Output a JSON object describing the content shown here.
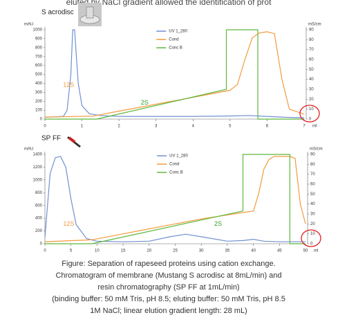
{
  "header": "eluted by NaCl gradient allowed the identification of prot",
  "chart_data": [
    {
      "type": "line",
      "title": "S acrodisc",
      "ylabel": "mAU",
      "y2label": "mS/cm",
      "xlabel": "ml",
      "xlim": [
        0,
        7
      ],
      "xticks": [
        0,
        1,
        2,
        3,
        4,
        5,
        6,
        7
      ],
      "ylim": [
        0,
        1000
      ],
      "yticks": [
        0,
        100,
        200,
        300,
        400,
        500,
        600,
        700,
        800,
        900,
        1000
      ],
      "y2lim": [
        0,
        90
      ],
      "y2ticks": [
        0,
        10,
        20,
        30,
        40,
        50,
        60,
        70,
        80,
        90
      ],
      "series": [
        {
          "name": "UV 1_280",
          "color": "#6f8fd0",
          "axis": "y",
          "x": [
            0,
            0.5,
            0.6,
            0.7,
            0.75,
            0.8,
            0.85,
            0.9,
            1.0,
            1.2,
            1.5,
            2,
            3,
            4,
            5,
            5.5,
            6,
            6.5,
            7
          ],
          "values": [
            20,
            30,
            100,
            500,
            1000,
            1000,
            700,
            400,
            150,
            60,
            40,
            30,
            30,
            30,
            35,
            40,
            30,
            20,
            15
          ]
        },
        {
          "name": "Cond",
          "color": "#f39a3c",
          "axis": "y2",
          "x": [
            0,
            1.3,
            2,
            3,
            4,
            5,
            5.2,
            5.4,
            5.6,
            5.8,
            6.0,
            6.2,
            6.4,
            6.6,
            7
          ],
          "values": [
            2,
            3,
            8,
            15,
            22,
            29,
            35,
            60,
            82,
            87,
            88,
            86,
            40,
            10,
            5
          ]
        },
        {
          "name": "Conc B",
          "color": "#5cb83a",
          "axis": "y2",
          "x": [
            0,
            1.4,
            4.9,
            4.9,
            5.75,
            5.75,
            7
          ],
          "values": [
            0,
            0,
            30,
            90,
            90,
            0,
            0
          ]
        }
      ],
      "annotations": [
        {
          "text": "12S",
          "color": "#f39a3c"
        },
        {
          "text": "2S",
          "color": "#2aa02a"
        }
      ]
    },
    {
      "type": "line",
      "title": "SP FF",
      "ylabel": "mAU",
      "y2label": "mS/cm",
      "xlabel": "ml",
      "xlim": [
        0,
        50
      ],
      "xticks": [
        0,
        5,
        10,
        15,
        20,
        25,
        30,
        35,
        40,
        45,
        50
      ],
      "ylim": [
        0,
        1400
      ],
      "yticks": [
        0,
        200,
        400,
        600,
        800,
        1000,
        1200,
        1400
      ],
      "y2lim": [
        0,
        90
      ],
      "y2ticks": [
        0,
        10,
        20,
        30,
        40,
        50,
        60,
        70,
        80,
        90
      ],
      "series": [
        {
          "name": "UV 1_280",
          "color": "#6f8fd0",
          "axis": "y",
          "x": [
            0,
            1,
            2,
            3,
            4,
            5,
            6,
            8,
            10,
            15,
            20,
            24,
            27,
            30,
            35,
            38,
            40,
            42,
            45,
            50
          ],
          "values": [
            100,
            1100,
            1350,
            1370,
            1200,
            700,
            300,
            80,
            40,
            30,
            40,
            110,
            150,
            110,
            40,
            50,
            70,
            40,
            30,
            30
          ]
        },
        {
          "name": "Cond",
          "color": "#f39a3c",
          "axis": "y2",
          "x": [
            0,
            9,
            15,
            20,
            25,
            30,
            35,
            40,
            41,
            42,
            43,
            44,
            47,
            48,
            49,
            50
          ],
          "values": [
            2,
            4,
            10,
            15,
            20,
            25,
            29,
            33,
            50,
            75,
            85,
            88,
            88,
            86,
            40,
            20
          ]
        },
        {
          "name": "Conc B",
          "color": "#5cb83a",
          "axis": "y2",
          "x": [
            0,
            9,
            38,
            38,
            47,
            47,
            50
          ],
          "values": [
            0,
            0,
            33,
            90,
            90,
            0,
            0
          ]
        }
      ],
      "annotations": [
        {
          "text": "12S",
          "color": "#f39a3c"
        },
        {
          "text": "2S",
          "color": "#2aa02a"
        }
      ]
    }
  ],
  "caption": [
    "Figure: Separation of rapeseed proteins using cation exchange.",
    "Chromatogram of membrane (Mustang S acrodisc at 8mL/min) and",
    "resin chromatography (SP FF at 1mL/min)",
    "(binding buffer: 50 mM Tris, pH 8.5; eluting buffer: 50 mM Tris, pH 8.5",
    "1M NaCl; linear elution gradient length: 28 mL)"
  ]
}
